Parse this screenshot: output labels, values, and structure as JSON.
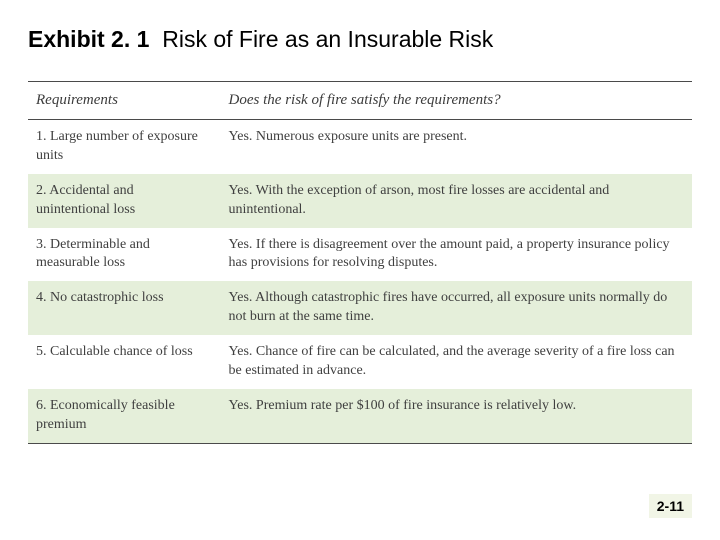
{
  "title": {
    "prefix": "Exhibit 2. 1",
    "text": "Risk of Fire as an Insurable Risk"
  },
  "colors": {
    "row_alt_bg": "#e5efda",
    "row_bg": "#ffffff",
    "rule": "#4a4a4a",
    "text": "#3f3f3f",
    "page_num_bg": "#f1f5e6"
  },
  "table": {
    "headers": {
      "requirements": "Requirements",
      "answer": "Does the risk of fire satisfy the requirements?"
    },
    "rows": [
      {
        "req": "1. Large number of exposure units",
        "ans": "Yes. Numerous exposure units are present."
      },
      {
        "req": "2. Accidental and unintentional loss",
        "ans": "Yes. With the exception of arson, most fire losses are accidental and unintentional."
      },
      {
        "req": "3. Determinable and measurable loss",
        "ans": "Yes. If there is disagreement over the amount paid, a property insurance policy has provisions for resolving disputes."
      },
      {
        "req": "4. No catastrophic loss",
        "ans": "Yes. Although catastrophic fires have occurred, all exposure units normally do not burn at the same time."
      },
      {
        "req": "5. Calculable chance of loss",
        "ans": "Yes. Chance of fire can be calculated, and the average severity of a fire loss can be estimated in advance."
      },
      {
        "req": "6. Economically feasible premium",
        "ans": "Yes. Premium rate per $100 of fire insurance is relatively low."
      }
    ]
  },
  "page_number": "2-11"
}
